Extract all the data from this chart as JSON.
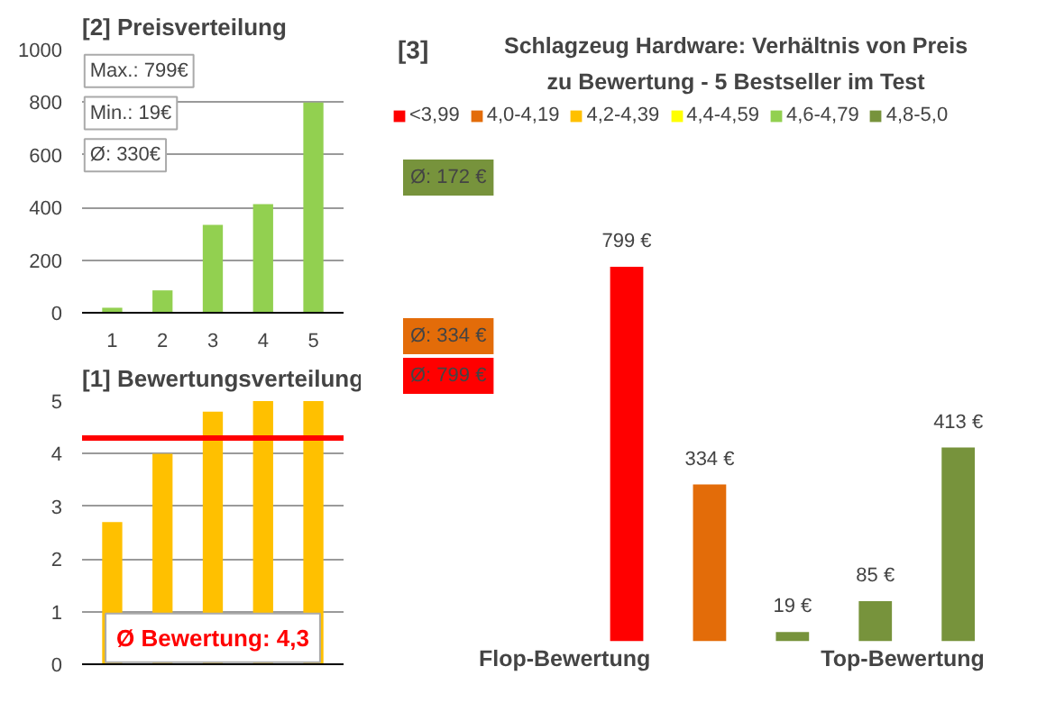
{
  "chart_data": [
    {
      "type": "bar",
      "title": "Preisverteilung",
      "annotations": [
        "[2]",
        "Max.: 799€",
        "Min.: 19€",
        "Ø: 330€"
      ],
      "categories": [
        "1",
        "2",
        "3",
        "4",
        "5"
      ],
      "values": [
        19,
        85,
        334,
        413,
        799
      ],
      "color": "#92d050",
      "ylim": [
        0,
        1000
      ],
      "yticks": [
        0,
        200,
        400,
        600,
        800,
        1000
      ],
      "grid": "y"
    },
    {
      "type": "bar",
      "title": "Bewertungsverteilung",
      "annotations": [
        "[1]",
        "Ø Bewertung: 4,3"
      ],
      "categories": [
        null,
        null,
        null,
        null,
        null
      ],
      "values": [
        2.7,
        4.0,
        4.8,
        5.0,
        5.0
      ],
      "color": "#ffc000",
      "ylim": [
        0,
        5
      ],
      "yticks": [
        0,
        1,
        2,
        3,
        4,
        5
      ],
      "grid": "y",
      "tick_labels": "y",
      "ref_lines": [
        {
          "axis": "y",
          "value": 4.3,
          "color": "#ff0000"
        }
      ]
    },
    {
      "type": "bar",
      "title": "Schlagzeug Hardware: Verhältnis von Preis zu Bewertung - 5 Bestseller im Test",
      "annotations": [
        "[3]",
        "Ø: 172 €",
        "Ø: 334 €",
        "Ø: 799 €",
        "Flop-Bewertung",
        "Top-Bewertung"
      ],
      "categories": [
        null,
        null,
        null,
        null,
        null
      ],
      "legend": "top",
      "stacked": true,
      "series": [
        {
          "name": "<3,99",
          "color": "#ff0000",
          "values": [
            799,
            null,
            null,
            null,
            null
          ],
          "value_labels": [
            "799 €",
            null,
            null,
            null,
            null
          ]
        },
        {
          "name": "4,0-4,19",
          "color": "#e36c09",
          "values": [
            null,
            334,
            null,
            null,
            null
          ],
          "value_labels": [
            null,
            "334 €",
            null,
            null,
            null
          ]
        },
        {
          "name": "4,2-4,39",
          "color": "#ffc000",
          "values": [
            null,
            null,
            null,
            null,
            null
          ]
        },
        {
          "name": "4,4-4,59",
          "color": "#ffff00",
          "values": [
            null,
            null,
            null,
            null,
            null
          ]
        },
        {
          "name": "4,6-4,79",
          "color": "#92d050",
          "values": [
            null,
            null,
            null,
            null,
            null
          ]
        },
        {
          "name": "4,8-5,0",
          "color": "#77933c",
          "values": [
            null,
            null,
            19,
            85,
            413
          ],
          "value_labels": [
            null,
            null,
            "19 €",
            "85 €",
            "413 €"
          ]
        }
      ]
    }
  ]
}
